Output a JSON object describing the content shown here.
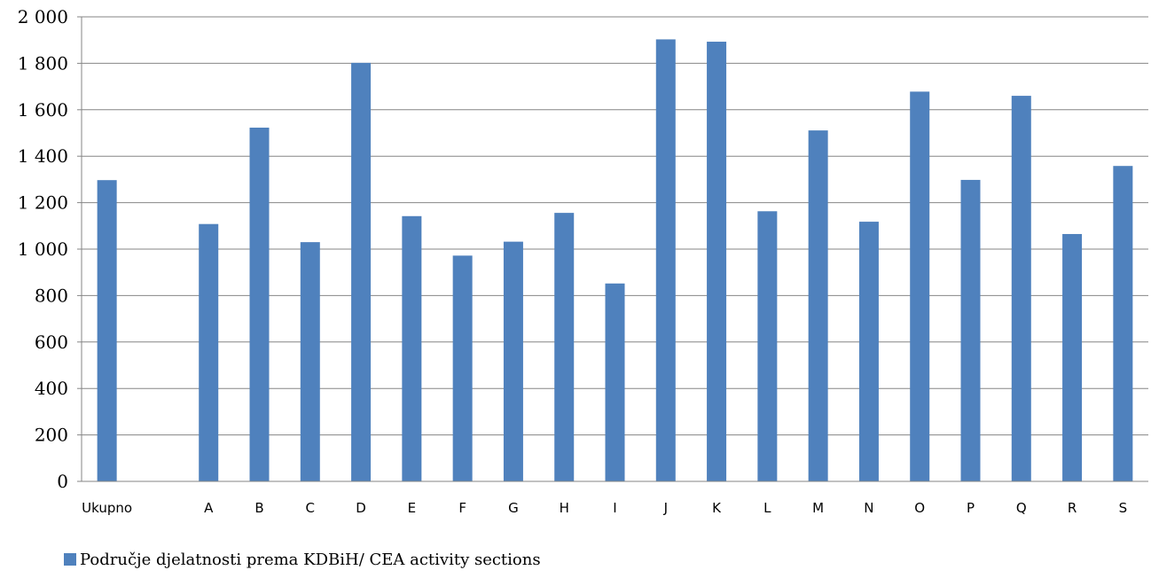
{
  "chart_data": {
    "type": "bar",
    "categories": [
      "Ukupno",
      "",
      "A",
      "B",
      "C",
      "D",
      "E",
      "F",
      "G",
      "H",
      "I",
      "J",
      "K",
      "L",
      "M",
      "N",
      "O",
      "P",
      "Q",
      "R",
      "S"
    ],
    "series": [
      {
        "name": "Područje djelatnosti prema KDBiH/ CEA activity sections",
        "values": [
          1297,
          null,
          1108,
          1523,
          1030,
          1802,
          1142,
          972,
          1032,
          1156,
          852,
          1903,
          1893,
          1163,
          1511,
          1118,
          1678,
          1298,
          1660,
          1065,
          1358
        ],
        "color": "#4f81bd"
      }
    ],
    "yticks": [
      "0",
      "200",
      "400",
      "600",
      "800",
      "1 000",
      "1 200",
      "1 400",
      "1 600",
      "1 800",
      "2 000"
    ],
    "ylim": [
      0,
      2000
    ],
    "grid": true,
    "legend": "bottom-left",
    "title": "",
    "xlabel": "",
    "ylabel": ""
  }
}
